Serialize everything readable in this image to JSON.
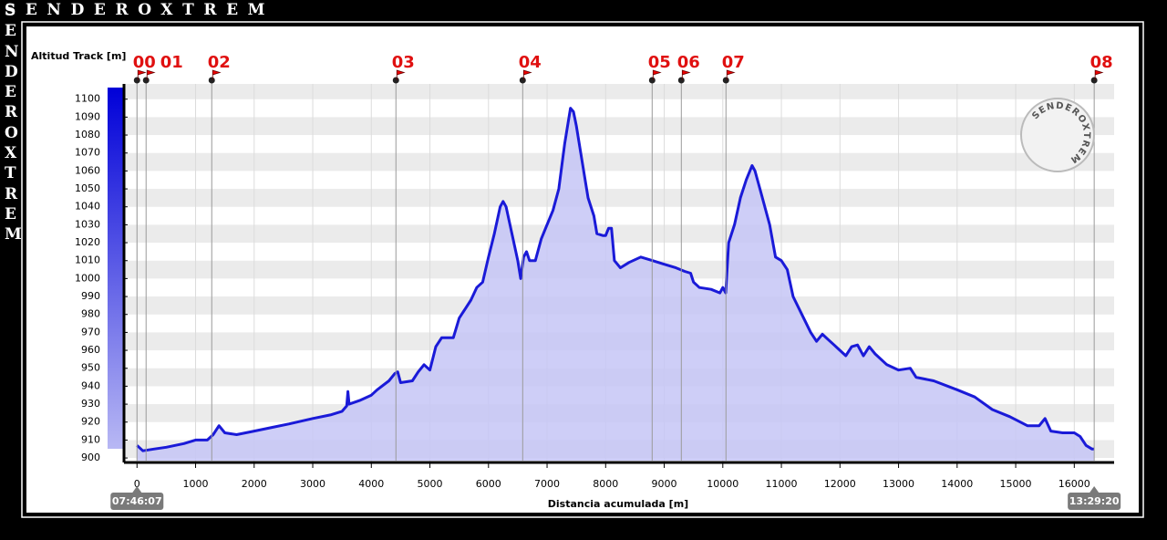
{
  "chart_data": {
    "type": "area",
    "brand": "SENDEROXTREM",
    "logo": "SENDEROXTREM",
    "y_title": "Altitud Track [m]",
    "x_title": "Distancia acumulada [m]",
    "start_time": "07:46:07",
    "end_time": "13:29:20",
    "color": "#1a1ad8",
    "fill": "#c6c6f6",
    "grid": true,
    "xlim": [
      -440,
      16680
    ],
    "ylim": [
      897.5,
      1108.5
    ],
    "xticks": [
      0,
      1000,
      2000,
      3000,
      4000,
      5000,
      6000,
      7000,
      8000,
      9000,
      10000,
      11000,
      12000,
      13000,
      14000,
      15000,
      16000
    ],
    "yticks": [
      900,
      910,
      920,
      930,
      940,
      950,
      960,
      970,
      980,
      990,
      1000,
      1010,
      1020,
      1030,
      1040,
      1050,
      1060,
      1070,
      1080,
      1090,
      1100
    ],
    "waypoints": [
      {
        "label": "00",
        "x": 0
      },
      {
        "label": "01",
        "x": 155
      },
      {
        "label": "02",
        "x": 1276
      },
      {
        "label": "03",
        "x": 4420
      },
      {
        "label": "04",
        "x": 6584
      },
      {
        "label": "05",
        "x": 8794
      },
      {
        "label": "06",
        "x": 9292
      },
      {
        "label": "07",
        "x": 10054
      },
      {
        "label": "08",
        "x": 16340
      }
    ],
    "x": [
      0,
      100,
      300,
      500,
      800,
      1000,
      1200,
      1300,
      1400,
      1500,
      1700,
      2000,
      2300,
      2600,
      3000,
      3300,
      3500,
      3580,
      3600,
      3620,
      3800,
      4000,
      4100,
      4300,
      4400,
      4450,
      4500,
      4700,
      4800,
      4900,
      5000,
      5100,
      5200,
      5400,
      5500,
      5700,
      5800,
      5900,
      6000,
      6100,
      6200,
      6250,
      6300,
      6400,
      6500,
      6550,
      6600,
      6650,
      6700,
      6800,
      6900,
      7000,
      7100,
      7200,
      7300,
      7400,
      7450,
      7500,
      7600,
      7700,
      7800,
      7850,
      7950,
      8000,
      8050,
      8100,
      8150,
      8250,
      8400,
      8600,
      8800,
      9000,
      9200,
      9350,
      9450,
      9500,
      9600,
      9800,
      9950,
      10000,
      10050,
      10100,
      10200,
      10300,
      10400,
      10500,
      10550,
      10650,
      10800,
      10900,
      11000,
      11100,
      11200,
      11350,
      11500,
      11600,
      11700,
      11800,
      11900,
      12000,
      12100,
      12200,
      12300,
      12400,
      12500,
      12600,
      12800,
      13000,
      13200,
      13300,
      13600,
      14000,
      14300,
      14600,
      14900,
      15200,
      15400,
      15500,
      15600,
      15800,
      16000,
      16100,
      16200,
      16300,
      16340
    ],
    "values": [
      907,
      904,
      905,
      906,
      908,
      910,
      910,
      913,
      918,
      914,
      913,
      915,
      917,
      919,
      922,
      924,
      926,
      929,
      937,
      930,
      932,
      935,
      938,
      943,
      947,
      948,
      942,
      943,
      948,
      952,
      949,
      962,
      967,
      967,
      978,
      988,
      995,
      998,
      1012,
      1025,
      1040,
      1043,
      1040,
      1025,
      1010,
      1000,
      1012,
      1015,
      1010,
      1010,
      1022,
      1030,
      1038,
      1050,
      1075,
      1095,
      1093,
      1085,
      1065,
      1045,
      1035,
      1025,
      1024,
      1024,
      1028,
      1028,
      1010,
      1006,
      1009,
      1012,
      1010,
      1008,
      1006,
      1004,
      1003,
      998,
      995,
      994,
      992,
      995,
      992,
      1020,
      1030,
      1045,
      1055,
      1063,
      1060,
      1048,
      1030,
      1012,
      1010,
      1005,
      990,
      980,
      970,
      965,
      969,
      966,
      963,
      960,
      957,
      962,
      963,
      957,
      962,
      958,
      952,
      949,
      950,
      945,
      943,
      938,
      934,
      927,
      923,
      918,
      918,
      922,
      915,
      914,
      914,
      912,
      907,
      905,
      905
    ]
  }
}
